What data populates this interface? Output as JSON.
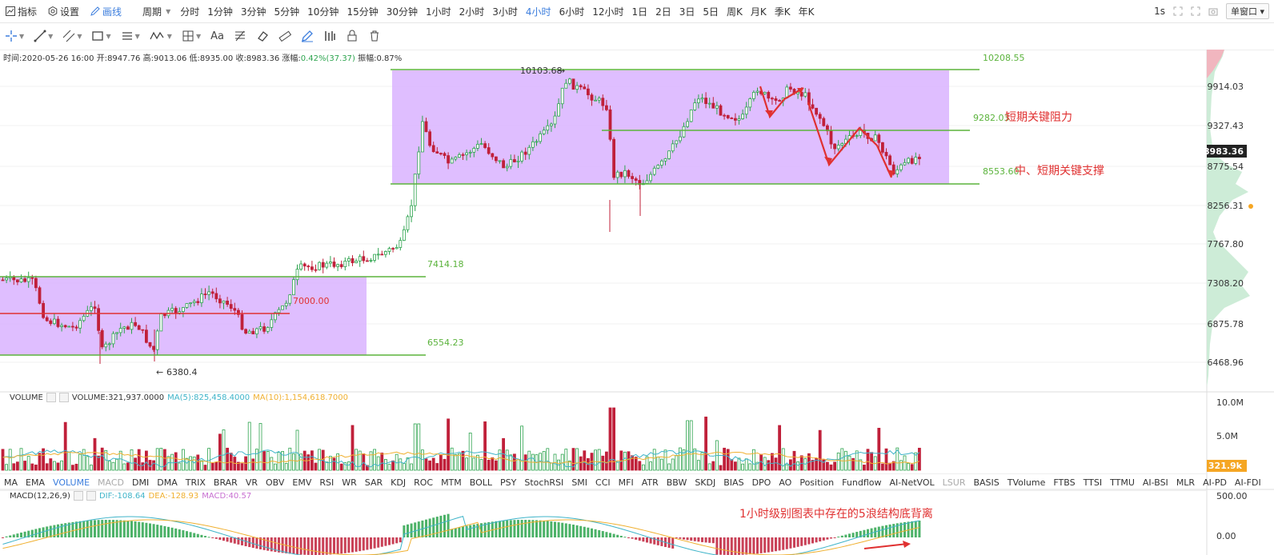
{
  "toolbar": {
    "indicator": "指标",
    "settings": "设置",
    "draw": "画线",
    "period_label": "周期",
    "periods": [
      "分时",
      "1分钟",
      "3分钟",
      "5分钟",
      "10分钟",
      "15分钟",
      "30分钟",
      "1小时",
      "2小时",
      "3小时",
      "4小时",
      "6小时",
      "12小时",
      "1日",
      "2日",
      "3日",
      "5日",
      "周K",
      "月K",
      "季K",
      "年K"
    ],
    "active_period": "4小时",
    "interval": "1s",
    "window_mode": "单窗口"
  },
  "drawtools": [
    "crosshair",
    "trend-line",
    "parallel-lines",
    "rectangle",
    "horizontal-lines",
    "wave",
    "measure",
    "text",
    "fib",
    "eraser",
    "ruler",
    "pencil",
    "bars",
    "lock",
    "trash"
  ],
  "drawtool_text": "Aa",
  "info": {
    "time_label": "时间:",
    "time": "2020-05-26 16:00",
    "open_label": "开:",
    "open": "8947.76",
    "high_label": "高:",
    "high": "9013.06",
    "low_label": "低:",
    "low": "8935.00",
    "close_label": "收:",
    "close": "8983.36",
    "change_label": "涨幅:",
    "change": "0.42%(37.37)",
    "amp_label": "振幅:",
    "amp": "0.87%"
  },
  "price_axis": {
    "labels": [
      "9914.03",
      "9327.43",
      "8775.54",
      "8256.31",
      "7767.80",
      "7308.20",
      "6875.78",
      "6468.96"
    ],
    "current": "8983.36"
  },
  "annotations": {
    "level_10208": "10208.55",
    "level_10103": "10103.68",
    "level_9282": "9282.03",
    "level_9282_text": "短期关键阻力",
    "level_8553": "8553.60",
    "level_8553_text": "中、短期关键支撑",
    "level_7414": "7414.18",
    "level_7000": "7000.00",
    "level_6554": "6554.23",
    "level_6380": "6380.4",
    "macd_note": "1小时级别图表中存在的5浪结构底背离"
  },
  "volume": {
    "label": "VOLUME",
    "value_label": "VOLUME:321,937.0000",
    "ma5": "MA(5):825,458.4000",
    "ma10": "MA(10):1,154,618.7000",
    "axis": [
      "10.0M",
      "5.0M"
    ],
    "current": "321.9k"
  },
  "indicators": [
    "MA",
    "EMA",
    "VOLUME",
    "MACD",
    "DMI",
    "DMA",
    "TRIX",
    "BRAR",
    "VR",
    "OBV",
    "EMV",
    "RSI",
    "WR",
    "SAR",
    "KDJ",
    "ROC",
    "MTM",
    "BOLL",
    "PSY",
    "StochRSI",
    "SMI",
    "CCI",
    "MFI",
    "ATR",
    "BBW",
    "SKDJ",
    "BIAS",
    "DPO",
    "AO",
    "Position",
    "Fundflow",
    "AI-NetVOL",
    "LSUR",
    "BASIS",
    "TVolume",
    "FTBS",
    "TTSI",
    "TTMU",
    "AI-BSI",
    "MLR",
    "AI-PD",
    "AI-FDI"
  ],
  "macd": {
    "label": "MACD(12,26,9)",
    "dif": "DIF:-108.64",
    "dea": "DEA:-128.93",
    "macd": "MACD:40.57",
    "axis": [
      "500.00",
      "0.00"
    ]
  },
  "colors": {
    "up": "#2da44e",
    "down": "#c0203a",
    "accent": "#3b7ddd",
    "zone": "#d9b3ff",
    "level": "#5bb33c",
    "annotation": "#e03131"
  }
}
